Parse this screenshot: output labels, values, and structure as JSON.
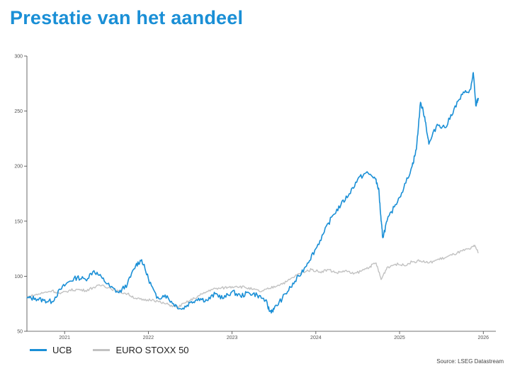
{
  "title": "Prestatie van het aandeel",
  "source": "Source: LSEG Datastream",
  "colors": {
    "accent": "#1a8fd6",
    "ucb": "#1a8fd6",
    "stoxx": "#c2c2c2"
  },
  "chart_data": {
    "type": "line",
    "title": "Prestatie van het aandeel",
    "xlabel": "",
    "ylabel": "",
    "ylim": [
      50,
      300
    ],
    "yticks": [
      50,
      100,
      150,
      200,
      250,
      300
    ],
    "xlim": [
      2020.55,
      2026.15
    ],
    "xticks": [
      {
        "label": "2021",
        "pos": 2021.0
      },
      {
        "label": "2022",
        "pos": 2022.0
      },
      {
        "label": "2023",
        "pos": 2023.0
      },
      {
        "label": "2024",
        "pos": 2024.0
      },
      {
        "label": "2025",
        "pos": 2025.0
      },
      {
        "label": "2026",
        "pos": 2026.0
      }
    ],
    "grid": false,
    "legend_position": "bottom-left",
    "series": [
      {
        "name": "UCB",
        "color": "#1a8fd6",
        "points": [
          [
            2020.55,
            80
          ],
          [
            2020.65,
            80
          ],
          [
            2020.75,
            78
          ],
          [
            2020.85,
            77
          ],
          [
            2020.95,
            88
          ],
          [
            2021.05,
            95
          ],
          [
            2021.15,
            99
          ],
          [
            2021.25,
            97
          ],
          [
            2021.35,
            105
          ],
          [
            2021.45,
            98
          ],
          [
            2021.55,
            90
          ],
          [
            2021.65,
            85
          ],
          [
            2021.75,
            93
          ],
          [
            2021.85,
            110
          ],
          [
            2021.92,
            115
          ],
          [
            2022.0,
            98
          ],
          [
            2022.1,
            80
          ],
          [
            2022.2,
            83
          ],
          [
            2022.3,
            75
          ],
          [
            2022.4,
            70
          ],
          [
            2022.5,
            76
          ],
          [
            2022.6,
            80
          ],
          [
            2022.7,
            78
          ],
          [
            2022.8,
            84
          ],
          [
            2022.9,
            80
          ],
          [
            2023.0,
            86
          ],
          [
            2023.1,
            82
          ],
          [
            2023.2,
            85
          ],
          [
            2023.3,
            83
          ],
          [
            2023.4,
            78
          ],
          [
            2023.45,
            68
          ],
          [
            2023.5,
            70
          ],
          [
            2023.6,
            80
          ],
          [
            2023.7,
            90
          ],
          [
            2023.8,
            100
          ],
          [
            2023.9,
            112
          ],
          [
            2024.0,
            125
          ],
          [
            2024.1,
            140
          ],
          [
            2024.2,
            155
          ],
          [
            2024.3,
            165
          ],
          [
            2024.4,
            175
          ],
          [
            2024.5,
            188
          ],
          [
            2024.6,
            194
          ],
          [
            2024.7,
            190
          ],
          [
            2024.75,
            180
          ],
          [
            2024.78,
            150
          ],
          [
            2024.8,
            135
          ],
          [
            2024.85,
            150
          ],
          [
            2024.95,
            165
          ],
          [
            2025.05,
            180
          ],
          [
            2025.15,
            200
          ],
          [
            2025.2,
            215
          ],
          [
            2025.25,
            258
          ],
          [
            2025.3,
            245
          ],
          [
            2025.35,
            220
          ],
          [
            2025.45,
            238
          ],
          [
            2025.55,
            235
          ],
          [
            2025.65,
            252
          ],
          [
            2025.75,
            265
          ],
          [
            2025.85,
            270
          ],
          [
            2025.88,
            285
          ],
          [
            2025.91,
            255
          ],
          [
            2025.94,
            262
          ]
        ]
      },
      {
        "name": "EURO STOXX 50",
        "color": "#c2c2c2",
        "points": [
          [
            2020.55,
            81
          ],
          [
            2020.65,
            83
          ],
          [
            2020.75,
            85
          ],
          [
            2020.85,
            87
          ],
          [
            2020.95,
            84
          ],
          [
            2021.05,
            87
          ],
          [
            2021.15,
            88
          ],
          [
            2021.25,
            87
          ],
          [
            2021.35,
            90
          ],
          [
            2021.45,
            92
          ],
          [
            2021.55,
            89
          ],
          [
            2021.65,
            86
          ],
          [
            2021.75,
            84
          ],
          [
            2021.85,
            80
          ],
          [
            2021.95,
            78
          ],
          [
            2022.05,
            79
          ],
          [
            2022.15,
            76
          ],
          [
            2022.25,
            74
          ],
          [
            2022.35,
            72
          ],
          [
            2022.45,
            76
          ],
          [
            2022.55,
            80
          ],
          [
            2022.65,
            84
          ],
          [
            2022.75,
            88
          ],
          [
            2022.85,
            89
          ],
          [
            2022.95,
            90
          ],
          [
            2023.05,
            91
          ],
          [
            2023.15,
            90
          ],
          [
            2023.25,
            88
          ],
          [
            2023.35,
            86
          ],
          [
            2023.45,
            89
          ],
          [
            2023.55,
            92
          ],
          [
            2023.65,
            95
          ],
          [
            2023.75,
            100
          ],
          [
            2023.85,
            104
          ],
          [
            2023.95,
            106
          ],
          [
            2024.05,
            104
          ],
          [
            2024.15,
            106
          ],
          [
            2024.25,
            103
          ],
          [
            2024.35,
            105
          ],
          [
            2024.45,
            102
          ],
          [
            2024.55,
            105
          ],
          [
            2024.65,
            109
          ],
          [
            2024.72,
            112
          ],
          [
            2024.78,
            97
          ],
          [
            2024.85,
            108
          ],
          [
            2024.95,
            111
          ],
          [
            2025.05,
            110
          ],
          [
            2025.15,
            113
          ],
          [
            2025.25,
            114
          ],
          [
            2025.35,
            112
          ],
          [
            2025.45,
            115
          ],
          [
            2025.55,
            117
          ],
          [
            2025.65,
            120
          ],
          [
            2025.75,
            123
          ],
          [
            2025.85,
            125
          ],
          [
            2025.9,
            128
          ],
          [
            2025.94,
            121
          ]
        ]
      }
    ]
  }
}
